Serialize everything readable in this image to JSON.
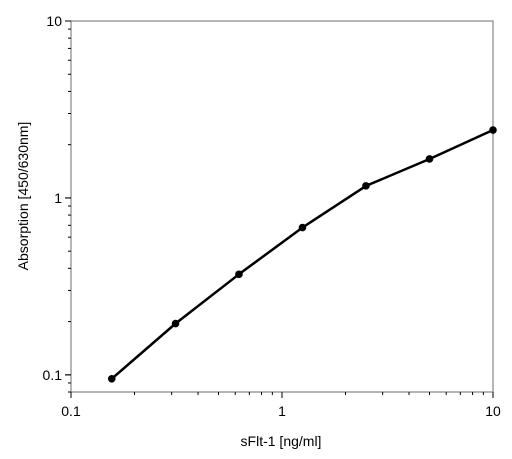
{
  "chart_data": {
    "type": "line",
    "xlabel": "sFlt-1 [ng/ml]",
    "ylabel": "Absorption [450/630nm]",
    "x_scale": "log",
    "y_scale": "log",
    "xlim": [
      0.1,
      10
    ],
    "ylim": [
      0.08,
      10
    ],
    "x_ticks": [
      0.1,
      1,
      10
    ],
    "x_tick_labels": [
      "0.1",
      "1",
      "10"
    ],
    "y_ticks": [
      0.1,
      1,
      10
    ],
    "y_tick_labels": [
      "0.1",
      "1",
      "10"
    ],
    "grid": false,
    "series": [
      {
        "x": [
          0.156,
          0.313,
          0.625,
          1.25,
          2.5,
          5,
          10
        ],
        "y": [
          0.095,
          0.195,
          0.37,
          0.68,
          1.17,
          1.66,
          2.42
        ]
      }
    ],
    "line_color": "#000000"
  }
}
